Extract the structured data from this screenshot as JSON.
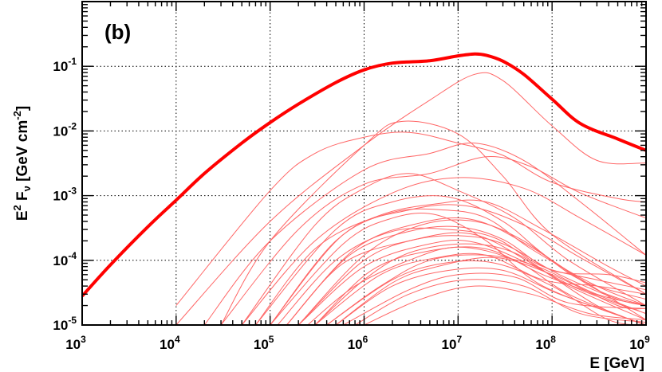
{
  "chart_data": {
    "type": "line",
    "panel_label": "(b)",
    "xlabel": "E  [GeV]",
    "ylabel": {
      "pre": "E",
      "pre_sup": "2",
      "mid": " F",
      "mid_sub": "ν",
      "post": "  [GeV cm",
      "post_sup": "-2",
      "end": "]"
    },
    "x_scale": "log",
    "y_scale": "log",
    "xlim": [
      1000,
      1000000000
    ],
    "ylim": [
      1e-05,
      1
    ],
    "grid": true,
    "x_ticks": [
      {
        "base": "10",
        "exp": "3",
        "value": 1000
      },
      {
        "base": "10",
        "exp": "4",
        "value": 10000
      },
      {
        "base": "10",
        "exp": "5",
        "value": 100000
      },
      {
        "base": "10",
        "exp": "6",
        "value": 1000000
      },
      {
        "base": "10",
        "exp": "7",
        "value": 10000000
      },
      {
        "base": "10",
        "exp": "8",
        "value": 100000000
      },
      {
        "base": "10",
        "exp": "9",
        "value": 1000000000
      }
    ],
    "y_ticks": [
      {
        "base": "10",
        "exp": "-5",
        "value": 1e-05
      },
      {
        "base": "10",
        "exp": "-4",
        "value": 0.0001
      },
      {
        "base": "10",
        "exp": "-3",
        "value": 0.001
      },
      {
        "base": "10",
        "exp": "-2",
        "value": 0.01
      },
      {
        "base": "10",
        "exp": "-1",
        "value": 0.1
      }
    ],
    "series_styles": {
      "total_color": "#ff0000",
      "component_color": "#ff6666"
    },
    "total": {
      "x": [
        1000,
        2000,
        5000,
        10000,
        20000,
        50000,
        100000,
        200000,
        500000,
        1000000,
        2000000,
        5000000,
        10000000,
        15000000,
        20000000,
        30000000,
        50000000,
        100000000,
        200000000,
        500000000,
        1000000000
      ],
      "y": [
        2.8e-05,
        8.5e-05,
        0.00033,
        0.00085,
        0.0022,
        0.0065,
        0.0135,
        0.026,
        0.056,
        0.088,
        0.112,
        0.122,
        0.145,
        0.155,
        0.148,
        0.12,
        0.075,
        0.031,
        0.013,
        0.0075,
        0.005
      ]
    },
    "components": [
      {
        "x": [
          10000,
          100000,
          1000000,
          5000000,
          15000000,
          30000000,
          100000000,
          300000000,
          1000000000
        ],
        "y": [
          1e-05,
          0.0004,
          0.006,
          0.03,
          0.075,
          0.06,
          0.012,
          0.0035,
          0.0032
        ]
      },
      {
        "x": [
          10000,
          100000,
          300000,
          1000000,
          3000000,
          10000000,
          30000000,
          100000000,
          500000000,
          1000000000
        ],
        "y": [
          2e-05,
          0.0012,
          0.0045,
          0.008,
          0.0095,
          0.0065,
          0.0042,
          0.0016,
          0.0009,
          0.0008
        ]
      },
      {
        "x": [
          30000,
          100000,
          1000000,
          2500000,
          10000000,
          30000000,
          100000000,
          1000000000
        ],
        "y": [
          1e-05,
          0.0002,
          0.006,
          0.014,
          0.009,
          0.002,
          0.00025,
          3e-05
        ]
      },
      {
        "x": [
          20000,
          100000,
          1000000,
          5000000,
          15000000,
          50000000,
          200000000,
          1000000000
        ],
        "y": [
          1e-05,
          0.0002,
          0.0025,
          0.0045,
          0.0065,
          0.0035,
          0.0008,
          0.00012
        ]
      },
      {
        "x": [
          30000,
          200000,
          1000000,
          5000000,
          20000000,
          60000000,
          200000000,
          1000000000
        ],
        "y": [
          1e-05,
          0.0003,
          0.0015,
          0.0022,
          0.004,
          0.0028,
          0.0011,
          0.00045
        ]
      },
      {
        "x": [
          50000,
          300000,
          1000000,
          3000000,
          10000000,
          40000000,
          150000000,
          1000000000
        ],
        "y": [
          1e-05,
          0.00035,
          0.0013,
          0.0022,
          0.0012,
          0.00045,
          0.0001,
          2e-05
        ]
      },
      {
        "x": [
          50000,
          300000,
          2000000,
          10000000,
          50000000,
          200000000,
          1000000000
        ],
        "y": [
          1e-05,
          0.0002,
          0.0011,
          0.0019,
          0.0013,
          0.00045,
          0.00012
        ]
      },
      {
        "x": [
          70000,
          500000,
          2000000,
          8000000,
          30000000,
          100000000,
          1000000000
        ],
        "y": [
          1e-05,
          0.0003,
          0.0008,
          0.00095,
          0.0004,
          0.0001,
          1.2e-05
        ]
      },
      {
        "x": [
          100000,
          600000,
          3000000,
          12000000,
          50000000,
          200000000,
          1000000000
        ],
        "y": [
          1e-05,
          0.00025,
          0.0006,
          0.0007,
          0.00035,
          0.00011,
          3e-05
        ]
      },
      {
        "x": [
          100000,
          600000,
          2000000,
          6000000,
          20000000,
          80000000,
          1000000000
        ],
        "y": [
          1e-05,
          0.00018,
          0.00045,
          0.0005,
          0.0002,
          4e-05,
          1e-05
        ]
      },
      {
        "x": [
          150000,
          800000,
          4000000,
          15000000,
          60000000,
          300000000,
          1000000000
        ],
        "y": [
          1e-05,
          0.00015,
          0.00038,
          0.00042,
          0.00016,
          3.5e-05,
          2e-05
        ]
      },
      {
        "x": [
          150000,
          700000,
          3000000,
          10000000,
          30000000,
          100000000,
          400000000,
          1000000000
        ],
        "y": [
          1e-05,
          0.00012,
          0.00028,
          0.00033,
          0.00021,
          7e-05,
          6e-05,
          4.5e-05
        ]
      },
      {
        "x": [
          200000,
          1000000,
          4000000,
          15000000,
          60000000,
          300000000,
          1000000000
        ],
        "y": [
          1e-05,
          0.0001,
          0.00022,
          0.00025,
          9e-05,
          2e-05,
          1e-05
        ]
      },
      {
        "x": [
          200000,
          1000000,
          5000000,
          15000000,
          60000000,
          200000000,
          1000000000
        ],
        "y": [
          1e-05,
          8e-05,
          0.00018,
          0.00019,
          8.5e-05,
          3.5e-05,
          1.5e-05
        ]
      },
      {
        "x": [
          300000,
          1200000,
          5000000,
          20000000,
          80000000,
          400000000,
          1000000000
        ],
        "y": [
          1e-05,
          7e-05,
          0.00014,
          0.00015,
          6e-05,
          2.5e-05,
          1.5e-05
        ]
      },
      {
        "x": [
          300000,
          1500000,
          6000000,
          20000000,
          80000000,
          300000000,
          1000000000
        ],
        "y": [
          1e-05,
          6e-05,
          0.00011,
          0.00012,
          5e-05,
          4e-05,
          3e-05
        ]
      },
      {
        "x": [
          400000,
          2000000,
          7000000,
          25000000,
          100000000,
          400000000,
          1000000000
        ],
        "y": [
          1e-05,
          5e-05,
          9e-05,
          9e-05,
          4e-05,
          1.2e-05,
          1e-05
        ]
      },
      {
        "x": [
          500000,
          2000000,
          8000000,
          30000000,
          120000000,
          1000000000
        ],
        "y": [
          1e-05,
          4e-05,
          7e-05,
          7e-05,
          3e-05,
          1e-05
        ]
      },
      {
        "x": [
          600000,
          3000000,
          10000000,
          40000000,
          150000000,
          1000000000
        ],
        "y": [
          1e-05,
          3.5e-05,
          6e-05,
          5.5e-05,
          2.2e-05,
          1.8e-05
        ]
      },
      {
        "x": [
          800000,
          3000000,
          12000000,
          50000000,
          200000000,
          1000000000
        ],
        "y": [
          1e-05,
          3e-05,
          5e-05,
          4e-05,
          1.5e-05,
          1.1e-05
        ]
      },
      {
        "x": [
          100000,
          500000,
          2000000,
          7000000,
          20000000,
          60000000,
          300000000,
          1000000000
        ],
        "y": [
          1e-05,
          0.0002,
          0.00055,
          0.0006,
          0.00045,
          0.00015,
          4e-05,
          2e-05
        ]
      },
      {
        "x": [
          300000,
          1000000,
          3000000,
          12000000,
          40000000,
          150000000,
          1000000000
        ],
        "y": [
          1e-05,
          5e-05,
          0.00013,
          0.00018,
          0.00013,
          4e-05,
          1.2e-05
        ]
      },
      {
        "x": [
          200000,
          1000000,
          4000000,
          15000000,
          50000000,
          200000000,
          1000000000
        ],
        "y": [
          1e-05,
          0.00012,
          0.00035,
          0.0004,
          0.0002,
          5e-05,
          2.5e-05
        ]
      },
      {
        "x": [
          500000,
          2000000,
          6000000,
          25000000,
          100000000,
          500000000,
          1000000000
        ],
        "y": [
          1e-05,
          4.5e-05,
          8e-05,
          0.00011,
          6e-05,
          2e-05,
          1.8e-05
        ]
      },
      {
        "x": [
          1000000,
          4000000,
          15000000,
          60000000,
          250000000,
          1000000000
        ],
        "y": [
          1e-05,
          2.5e-05,
          4e-05,
          3e-05,
          1.5e-05,
          1.2e-05
        ]
      },
      {
        "x": [
          70000,
          300000,
          1500000,
          6000000,
          20000000,
          80000000,
          400000000,
          1000000000
        ],
        "y": [
          1e-05,
          0.00015,
          0.0005,
          0.00075,
          0.0008,
          0.0003,
          8e-05,
          4e-05
        ]
      },
      {
        "x": [
          120000,
          500000,
          2000000,
          8000000,
          25000000,
          80000000,
          300000000,
          1000000000
        ],
        "y": [
          1e-05,
          0.0001,
          0.00028,
          0.0003,
          0.00022,
          8e-05,
          5e-05,
          3.5e-05
        ]
      },
      {
        "x": [
          400000,
          1500000,
          5000000,
          20000000,
          70000000,
          300000000,
          1000000000
        ],
        "y": [
          1e-05,
          4e-05,
          0.0001,
          0.00012,
          8e-05,
          3e-05,
          2e-05
        ]
      },
      {
        "x": [
          250000,
          800000,
          3000000,
          10000000,
          40000000,
          150000000,
          700000000,
          1000000000
        ],
        "y": [
          1e-05,
          4e-05,
          0.0001,
          0.00016,
          0.0001,
          3e-05,
          1.2e-05,
          1e-05
        ]
      },
      {
        "x": [
          150000,
          600000,
          3000000,
          10000000,
          30000000,
          120000000,
          500000000,
          1000000000
        ],
        "y": [
          1e-05,
          9e-05,
          0.0002,
          0.00024,
          0.00018,
          6e-05,
          2.5e-05,
          2e-05
        ]
      }
    ]
  }
}
